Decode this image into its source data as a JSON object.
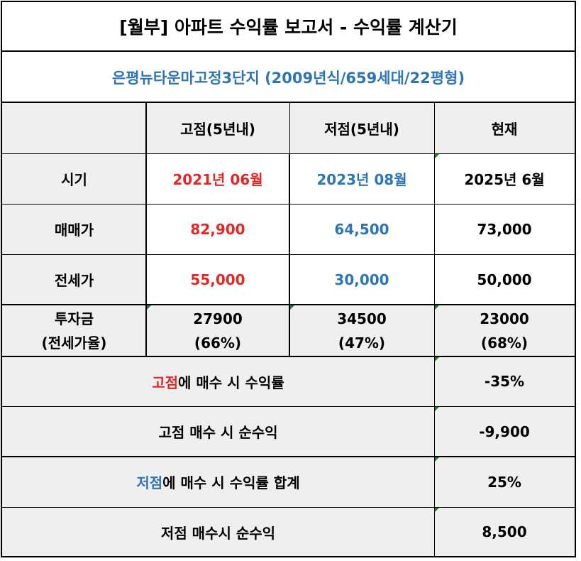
{
  "title": "[월부] 아파트 수익률 보고서 - 수익률 계산기",
  "subtitle": "은평뉴타운마고정3단지 (2009년식/659세대/22평형)",
  "columns": {
    "high": "고점(5년내)",
    "low": "저점(5년내)",
    "now": "현재"
  },
  "rows": {
    "period": {
      "label": "시기",
      "high": "2021년 06월",
      "low": "2023년 08월",
      "now": "2025년 6월"
    },
    "sale": {
      "label": "매매가",
      "high": "82,900",
      "low": "64,500",
      "now": "73,000"
    },
    "jeonse": {
      "label": "전세가",
      "high": "55,000",
      "low": "30,000",
      "now": "50,000"
    },
    "invest": {
      "label1": "투자금",
      "label2": "(전세가율)",
      "high1": "27900",
      "high2": "(66%)",
      "low1": "34500",
      "low2": "(47%)",
      "now1": "23000",
      "now2": "(68%)"
    }
  },
  "summary": {
    "high_return": {
      "prefix": "고점",
      "rest": "에 매수 시 수익률",
      "value": "-35%"
    },
    "high_net": {
      "label": "고점 매수 시 순수익",
      "value": "-9,900"
    },
    "low_return": {
      "prefix": "저점",
      "rest": "에 매수 시 수익률 합계",
      "value": "25%"
    },
    "low_net": {
      "label": "저점 매수시 순수익",
      "value": "8,500"
    }
  },
  "colors": {
    "high": "#e82525",
    "low": "#2e75b6",
    "header_bg": "#efefef",
    "border": "#000000"
  }
}
